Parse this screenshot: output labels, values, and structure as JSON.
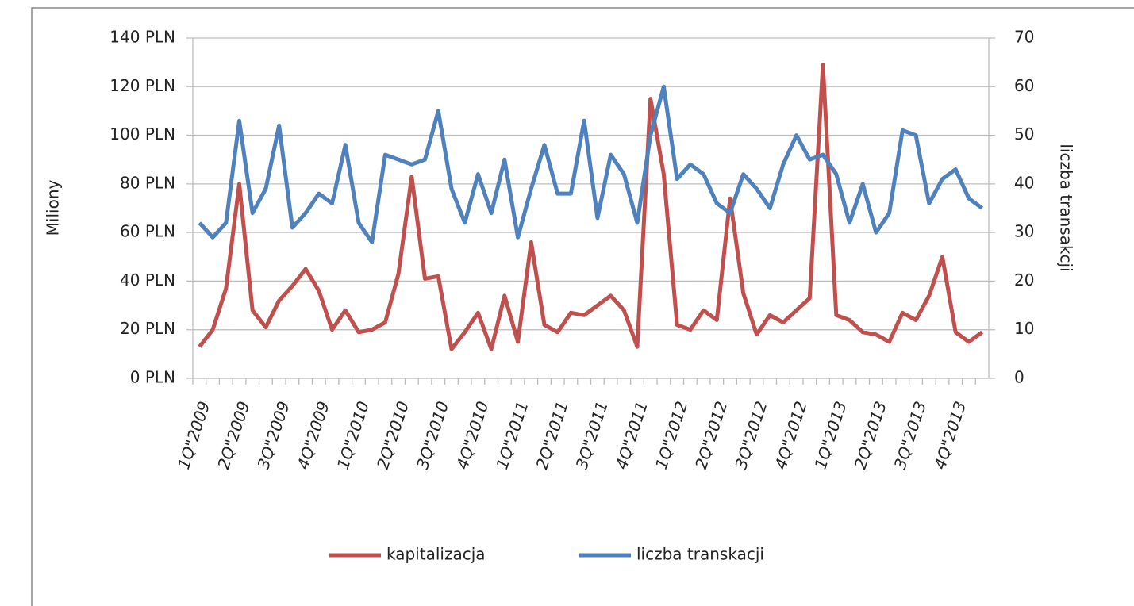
{
  "chart_data": {
    "type": "line",
    "categories": [
      "1Q\"2009",
      null,
      null,
      "2Q\"2009",
      null,
      null,
      "3Q\"2009",
      null,
      null,
      "4Q\"2009",
      null,
      null,
      "1Q\"2010",
      null,
      null,
      "2Q\"2010",
      null,
      null,
      "3Q\"2010",
      null,
      null,
      "4Q\"2010",
      null,
      null,
      "1Q\"2011",
      null,
      null,
      "2Q\"2011",
      null,
      null,
      "3Q\"2011",
      null,
      null,
      "4Q\"2011",
      null,
      null,
      "1Q\"2012",
      null,
      null,
      "2Q\"2012",
      null,
      null,
      "3Q\"2012",
      null,
      null,
      "4Q\"2012",
      null,
      null,
      "1Q\"2013",
      null,
      null,
      "2Q\"2013",
      null,
      null,
      "3Q\"2013",
      null,
      null,
      "4Q\"2013",
      null,
      null
    ],
    "series": [
      {
        "name": "kapitalizacja",
        "color": "#c0504d",
        "axis": "y",
        "values": [
          13,
          20,
          37,
          80,
          28,
          21,
          32,
          38,
          45,
          36,
          20,
          28,
          19,
          20,
          23,
          43,
          83,
          41,
          42,
          12,
          19,
          27,
          12,
          34,
          15,
          56,
          22,
          19,
          27,
          26,
          30,
          34,
          28,
          13,
          115,
          84,
          22,
          20,
          28,
          24,
          74,
          35,
          18,
          26,
          23,
          28,
          33,
          129,
          26,
          24,
          19,
          18,
          15,
          27,
          24,
          34,
          50,
          19,
          15,
          19
        ]
      },
      {
        "name": "liczba transkacji",
        "color": "#4f81bd",
        "axis": "y2",
        "values": [
          32,
          29,
          32,
          53,
          34,
          39,
          52,
          31,
          34,
          38,
          36,
          48,
          32,
          28,
          46,
          45,
          44,
          45,
          55,
          39,
          32,
          42,
          34,
          45,
          29,
          39,
          48,
          38,
          38,
          53,
          33,
          46,
          42,
          32,
          50,
          60,
          41,
          44,
          42,
          36,
          34,
          42,
          39,
          35,
          44,
          50,
          45,
          46,
          42,
          32,
          40,
          30,
          34,
          51,
          50,
          36,
          41,
          43,
          37,
          35
        ]
      }
    ],
    "ylabel": "Miliony",
    "y2label": "liczba transakcji",
    "ylim": [
      0,
      140
    ],
    "yticks": [
      {
        "value": 0,
        "label": "0 PLN"
      },
      {
        "value": 20,
        "label": "20 PLN"
      },
      {
        "value": 40,
        "label": "40 PLN"
      },
      {
        "value": 60,
        "label": "60 PLN"
      },
      {
        "value": 80,
        "label": "80 PLN"
      },
      {
        "value": 100,
        "label": "100 PLN"
      },
      {
        "value": 120,
        "label": "120 PLN"
      },
      {
        "value": 140,
        "label": "140 PLN"
      }
    ],
    "y2lim": [
      0,
      70
    ],
    "y2ticks": [
      0,
      10,
      20,
      30,
      40,
      50,
      60,
      70
    ],
    "grid": true,
    "legend": "bottom"
  }
}
